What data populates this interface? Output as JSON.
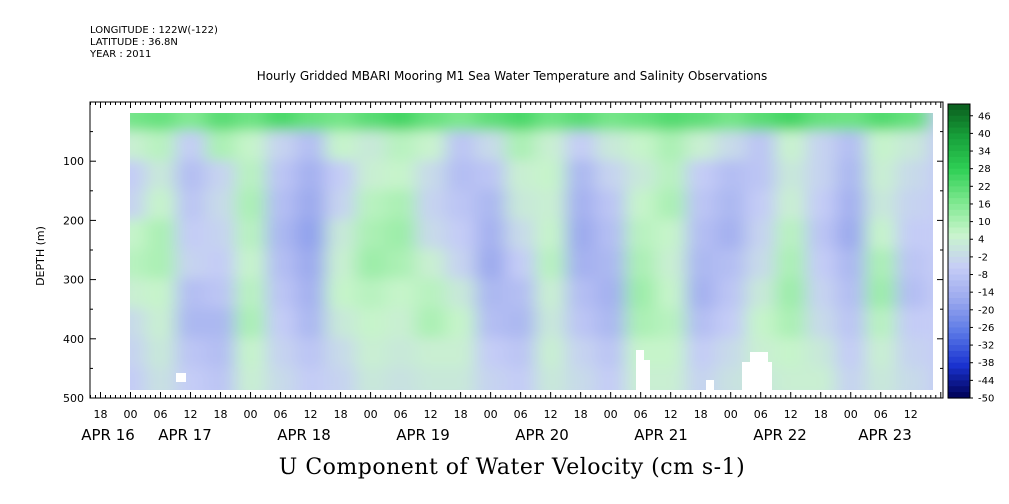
{
  "header": {
    "longitude": "LONGITUDE : 122W(-122)",
    "latitude": "LATITUDE : 36.8N",
    "year": "YEAR : 2011"
  },
  "chart_data": {
    "type": "heatmap",
    "title": "Hourly Gridded MBARI Mooring M1 Sea Water Temperature and Salinity Observations",
    "xlabel": "U Component of Water Velocity (cm s-1)",
    "ylabel": "DEPTH (m)",
    "ylim": [
      500,
      0
    ],
    "y_ticks": [
      100,
      200,
      300,
      400,
      500
    ],
    "x_hour_ticks": [
      "18",
      "00",
      "06",
      "12",
      "18",
      "00",
      "06",
      "12",
      "18",
      "00",
      "06",
      "12",
      "18",
      "00",
      "06",
      "12",
      "18",
      "00",
      "06",
      "12",
      "18",
      "00",
      "06",
      "12",
      "18",
      "00",
      "06",
      "12"
    ],
    "x_day_labels": [
      "APR 16",
      "APR 17",
      "APR 18",
      "APR 19",
      "APR 20",
      "APR 21",
      "APR 22",
      "APR 23"
    ],
    "colorbar_labels": [
      "46",
      "40",
      "34",
      "28",
      "22",
      "16",
      "10",
      "4",
      "-2",
      "-8",
      "-14",
      "-20",
      "-26",
      "-32",
      "-38",
      "-44",
      "-50"
    ],
    "colorbar_range": [
      -50,
      50
    ],
    "colorscale": [
      "#000055",
      "#1a33d0",
      "#5a78e6",
      "#9aa8ee",
      "#c6cdf6",
      "#c9f5cc",
      "#7de88f",
      "#2fcf55",
      "#17a03a",
      "#0a5c1d"
    ],
    "data_grid": {
      "times_start": "APR 16 18:00",
      "hours_per_column": 6,
      "depths": [
        25,
        75,
        125,
        175,
        225,
        275,
        325,
        375,
        425,
        475
      ],
      "values": [
        [
          null,
          18,
          20,
          16,
          22,
          19,
          24,
          20,
          18,
          22,
          25,
          20,
          17,
          21,
          24,
          19,
          22,
          18,
          20,
          23,
          21,
          18,
          22,
          25,
          20,
          19,
          23,
          20
        ],
        [
          null,
          4,
          8,
          -6,
          10,
          6,
          -4,
          -10,
          6,
          2,
          8,
          5,
          -8,
          -2,
          10,
          4,
          -6,
          2,
          6,
          10,
          4,
          -2,
          -8,
          5,
          -4,
          -10,
          6,
          2
        ],
        [
          null,
          -6,
          2,
          -10,
          -4,
          8,
          -8,
          -14,
          -6,
          4,
          6,
          -2,
          -10,
          -8,
          4,
          6,
          -12,
          -4,
          2,
          8,
          -6,
          -10,
          -8,
          2,
          -4,
          -12,
          4,
          -2
        ],
        [
          null,
          -4,
          6,
          -8,
          -2,
          10,
          -10,
          -16,
          -4,
          8,
          10,
          -4,
          -8,
          -12,
          2,
          4,
          -14,
          -8,
          6,
          10,
          -8,
          -12,
          -6,
          4,
          -6,
          -14,
          2,
          -4
        ],
        [
          null,
          6,
          10,
          -6,
          -4,
          8,
          -12,
          -18,
          2,
          10,
          12,
          -2,
          -6,
          -14,
          -2,
          6,
          -16,
          -10,
          8,
          6,
          -10,
          -14,
          -4,
          8,
          -8,
          -16,
          6,
          -6
        ],
        [
          null,
          8,
          10,
          -4,
          -6,
          6,
          -10,
          -16,
          4,
          12,
          10,
          4,
          -4,
          -16,
          -6,
          8,
          -14,
          -12,
          10,
          4,
          -12,
          -10,
          -2,
          10,
          -6,
          -12,
          10,
          -8
        ],
        [
          null,
          4,
          6,
          -10,
          -8,
          8,
          -8,
          -14,
          6,
          8,
          6,
          8,
          2,
          -12,
          -10,
          4,
          -10,
          -14,
          12,
          6,
          -14,
          -8,
          2,
          12,
          -4,
          -10,
          12,
          -10
        ],
        [
          null,
          -2,
          4,
          -12,
          -12,
          10,
          -6,
          -12,
          2,
          6,
          4,
          10,
          6,
          -10,
          -12,
          2,
          -8,
          -12,
          10,
          8,
          -10,
          -6,
          6,
          10,
          -2,
          -8,
          8,
          -6
        ],
        [
          null,
          -4,
          2,
          -8,
          -10,
          6,
          -4,
          -8,
          -2,
          4,
          2,
          4,
          4,
          -6,
          -8,
          4,
          -4,
          -8,
          6,
          6,
          -6,
          -2,
          4,
          6,
          2,
          -6,
          4,
          -4
        ],
        [
          null,
          -6,
          0,
          -6,
          -8,
          4,
          -2,
          -6,
          -4,
          2,
          0,
          2,
          2,
          -4,
          -6,
          2,
          -2,
          -6,
          4,
          4,
          -4,
          0,
          2,
          4,
          4,
          -4,
          2,
          -2
        ]
      ]
    }
  }
}
